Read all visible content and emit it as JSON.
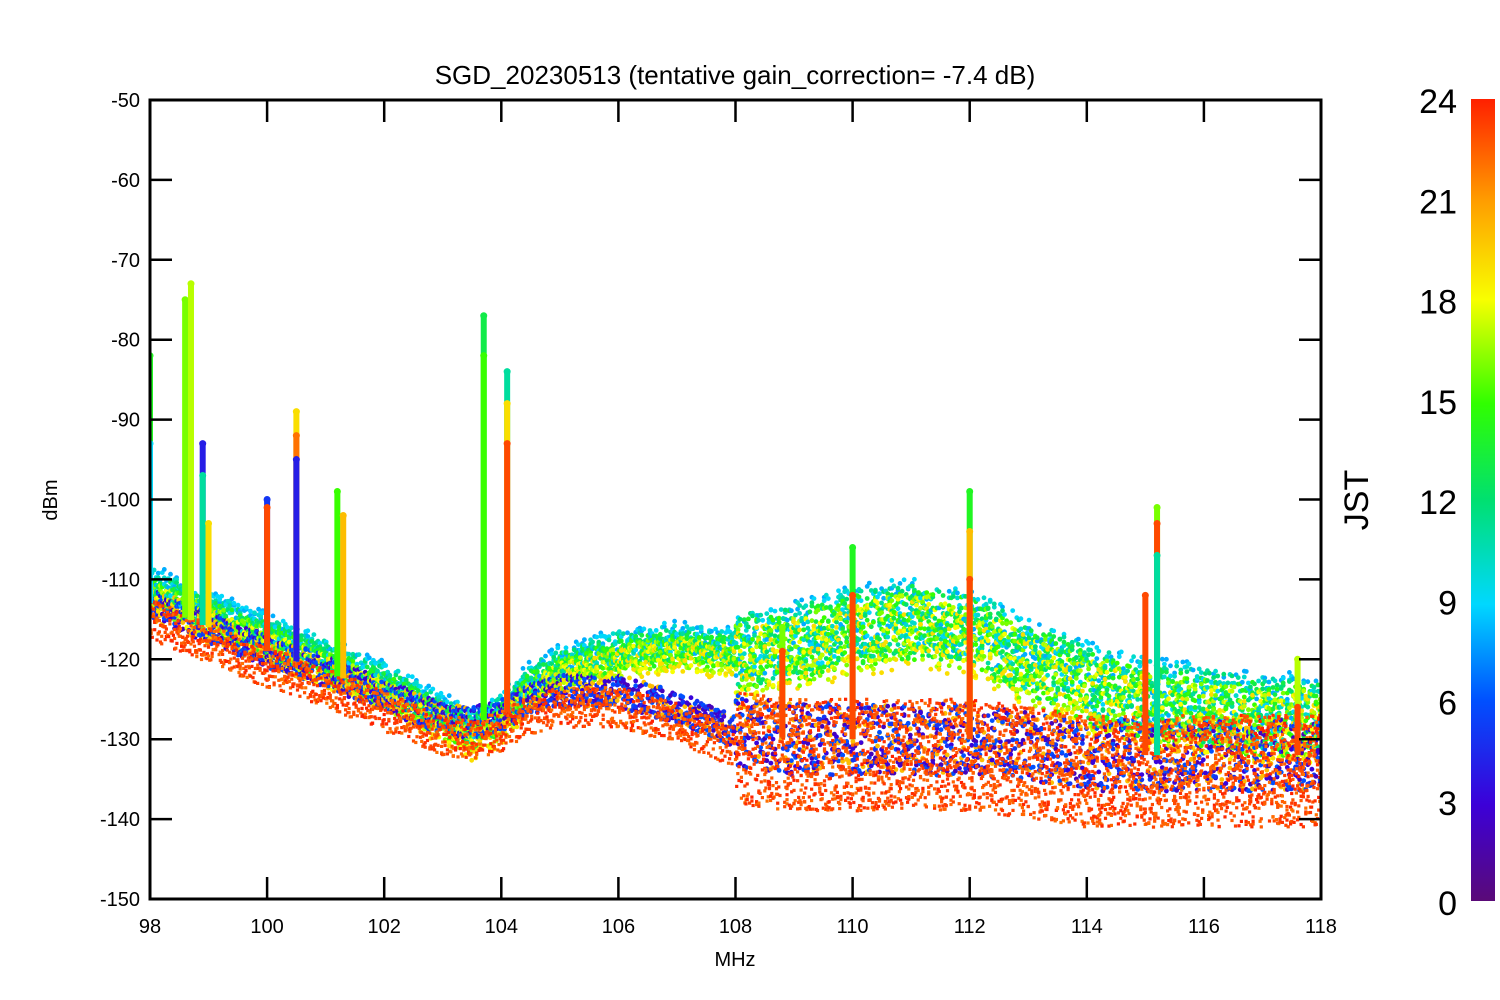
{
  "chart_data": {
    "type": "scatter",
    "title": "SGD_20230513 (tentative gain_correction= -7.4 dB)",
    "xlabel": "MHz",
    "ylabel": "dBm",
    "xlim": [
      98,
      118
    ],
    "ylim": [
      -150,
      -50
    ],
    "x_ticks": [
      "98",
      "100",
      "102",
      "104",
      "106",
      "108",
      "110",
      "112",
      "114",
      "116",
      "118"
    ],
    "y_ticks": [
      "-50",
      "-60",
      "-70",
      "-80",
      "-90",
      "-100",
      "-110",
      "-120",
      "-130",
      "-140",
      "-150"
    ],
    "colorbar": {
      "label": "JST",
      "range": [
        0,
        24
      ],
      "ticks": [
        "24",
        "21",
        "18",
        "15",
        "12",
        "9",
        "6",
        "3",
        "0"
      ],
      "colormap": "rainbow (purple-blue-cyan-green-yellow-red)"
    },
    "background_floor": {
      "x": [
        98,
        99,
        100,
        101,
        102,
        103,
        103.5,
        104,
        104.5,
        105,
        106,
        107,
        108,
        109,
        110,
        111,
        112,
        113,
        114,
        115,
        116,
        117,
        118
      ],
      "y_night": [
        -115,
        -118,
        -121,
        -123.5,
        -126.5,
        -129.5,
        -130,
        -129,
        -127,
        -126,
        -126,
        -128,
        -131,
        -132,
        -132,
        -132,
        -132,
        -133,
        -134,
        -134,
        -134,
        -134,
        -134
      ],
      "y_day": [
        -110,
        -113,
        -116,
        -119,
        -122,
        -126,
        -128,
        -126,
        -122,
        -120,
        -118,
        -117,
        -118,
        -117,
        -115,
        -114,
        -115,
        -119,
        -122,
        -124,
        -125,
        -126,
        -126
      ]
    },
    "spikes": [
      {
        "x": 98.0,
        "top": -82,
        "hour": 14
      },
      {
        "x": 98.0,
        "top": -93,
        "hour": 9
      },
      {
        "x": 98.6,
        "top": -75,
        "hour": 16
      },
      {
        "x": 98.7,
        "top": -73,
        "hour": 17
      },
      {
        "x": 98.9,
        "top": -93,
        "hour": 4
      },
      {
        "x": 98.9,
        "top": -97,
        "hour": 11
      },
      {
        "x": 99.0,
        "top": -103,
        "hour": 19
      },
      {
        "x": 100.0,
        "top": -100,
        "hour": 5
      },
      {
        "x": 100.0,
        "top": -101,
        "hour": 23
      },
      {
        "x": 100.5,
        "top": -89,
        "hour": 19
      },
      {
        "x": 100.5,
        "top": -92,
        "hour": 22
      },
      {
        "x": 100.5,
        "top": -95,
        "hour": 4
      },
      {
        "x": 101.2,
        "top": -99,
        "hour": 15
      },
      {
        "x": 101.3,
        "top": -102,
        "hour": 20
      },
      {
        "x": 103.7,
        "top": -77,
        "hour": 13
      },
      {
        "x": 103.7,
        "top": -82,
        "hour": 15
      },
      {
        "x": 104.1,
        "top": -84,
        "hour": 11
      },
      {
        "x": 104.1,
        "top": -88,
        "hour": 19
      },
      {
        "x": 104.1,
        "top": -93,
        "hour": 23
      },
      {
        "x": 108.8,
        "top": -116,
        "hour": 16
      },
      {
        "x": 108.8,
        "top": -119,
        "hour": 23
      },
      {
        "x": 110.0,
        "top": -106,
        "hour": 14
      },
      {
        "x": 110.0,
        "top": -112,
        "hour": 23
      },
      {
        "x": 112.0,
        "top": -99,
        "hour": 14
      },
      {
        "x": 112.0,
        "top": -104,
        "hour": 20
      },
      {
        "x": 112.0,
        "top": -110,
        "hour": 23
      },
      {
        "x": 115.0,
        "top": -112,
        "hour": 23
      },
      {
        "x": 115.2,
        "top": -101,
        "hour": 16
      },
      {
        "x": 115.2,
        "top": -103,
        "hour": 23
      },
      {
        "x": 115.2,
        "top": -107,
        "hour": 11
      },
      {
        "x": 117.6,
        "top": -120,
        "hour": 17
      },
      {
        "x": 117.6,
        "top": -126,
        "hour": 23
      }
    ]
  }
}
